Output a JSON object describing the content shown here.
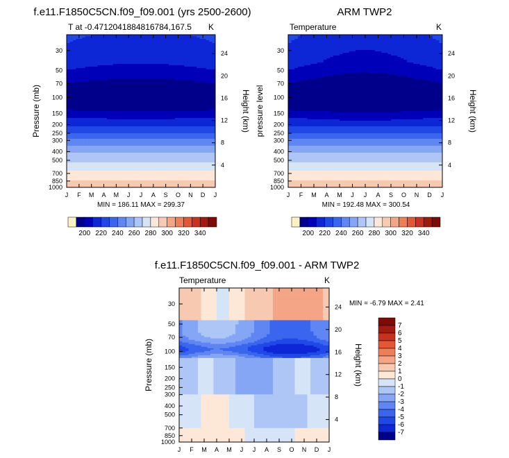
{
  "page": {
    "panel1_title": "f.e11.F1850C5CN.f09_f09.001 (yrs 2500-2600)",
    "panel2_title": "ARM TWP2",
    "panel3_title": "f.e11.F1850C5CN.f09_f09.001 - ARM TWP2"
  },
  "chart_data": [
    {
      "type": "contour",
      "title": "f.e11.F1850C5CN.f09_f09.001 (yrs 2500-2600)",
      "subtitle_left": "T at -0.4712041884816784,167.5",
      "subtitle_right": "K",
      "xlabel": "",
      "ylabel": "Pressure (mb)",
      "ylabel_right": "Height (km)",
      "x_ticks": [
        "J",
        "F",
        "M",
        "A",
        "M",
        "J",
        "J",
        "A",
        "S",
        "O",
        "N",
        "D",
        "J"
      ],
      "y_ticks": [
        "30",
        "50",
        "70",
        "100",
        "150",
        "200",
        "250",
        "300",
        "400",
        "500",
        "700",
        "850",
        "1000"
      ],
      "y_range_mb": [
        1000,
        20
      ],
      "right_ticks": [
        "24",
        "20",
        "16",
        "12",
        "8",
        "4"
      ],
      "stats_text": "MIN = 186.11 MAX = 299.37",
      "min": 186.11,
      "max": 299.37,
      "colorbar_labels": [
        "200",
        "220",
        "240",
        "260",
        "280",
        "300",
        "320",
        "340"
      ],
      "colorbar_levels": [
        190,
        200,
        210,
        220,
        230,
        240,
        250,
        260,
        270,
        280,
        290,
        300,
        310,
        320,
        330,
        340,
        350
      ],
      "colorbar_colors": [
        "#fff1c4",
        "#00008a",
        "#0000b8",
        "#0d27d6",
        "#2048e6",
        "#3a66ef",
        "#5f86f2",
        "#85a6f4",
        "#aec6f6",
        "#d6e4f7",
        "#fde7d7",
        "#f8c9b1",
        "#f3a585",
        "#ee7e58",
        "#e45735",
        "#c8321e",
        "#a11a0f",
        "#7e0a06"
      ],
      "levels_k": [
        {
          "p": 20,
          "v": 222
        },
        {
          "p": 40,
          "v": 215
        },
        {
          "p": 60,
          "v": 205
        },
        {
          "p": 80,
          "v": 195
        },
        {
          "p": 100,
          "v": 190
        },
        {
          "p": 130,
          "v": 196
        },
        {
          "p": 150,
          "v": 205
        },
        {
          "p": 200,
          "v": 218
        },
        {
          "p": 250,
          "v": 230
        },
        {
          "p": 300,
          "v": 242
        },
        {
          "p": 400,
          "v": 258
        },
        {
          "p": 500,
          "v": 268
        },
        {
          "p": 600,
          "v": 276
        },
        {
          "p": 700,
          "v": 283
        },
        {
          "p": 850,
          "v": 291
        },
        {
          "p": 1000,
          "v": 298
        }
      ]
    },
    {
      "type": "contour",
      "title": "ARM TWP2",
      "subtitle_left": "Temperature",
      "subtitle_right": "K",
      "xlabel": "",
      "ylabel": "pressure level",
      "ylabel_right": "Height (km)",
      "x_ticks": [
        "J",
        "F",
        "M",
        "A",
        "M",
        "J",
        "J",
        "A",
        "S",
        "O",
        "N",
        "D",
        "J"
      ],
      "y_ticks": [
        "30",
        "50",
        "70",
        "100",
        "150",
        "200",
        "250",
        "300",
        "400",
        "500",
        "700",
        "850",
        "1000"
      ],
      "y_range_mb": [
        1000,
        20
      ],
      "right_ticks": [
        "24",
        "20",
        "16",
        "12",
        "8",
        "4"
      ],
      "stats_text": "MIN = 192.48 MAX = 300.54",
      "min": 192.48,
      "max": 300.54,
      "colorbar_labels": [
        "200",
        "220",
        "240",
        "260",
        "280",
        "300",
        "320",
        "340"
      ]
    },
    {
      "type": "contour",
      "title": "f.e11.F1850C5CN.f09_f09.001 - ARM TWP2",
      "subtitle_left": "Temperature",
      "subtitle_right": "K",
      "xlabel": "",
      "ylabel": "Pressure (mb)",
      "ylabel_right": "Height (km)",
      "x_ticks": [
        "J",
        "F",
        "M",
        "A",
        "M",
        "J",
        "J",
        "A",
        "S",
        "O",
        "N",
        "D",
        "J"
      ],
      "y_ticks": [
        "30",
        "50",
        "70",
        "100",
        "150",
        "200",
        "250",
        "300",
        "400",
        "500",
        "700",
        "850",
        "1000"
      ],
      "y_range_mb": [
        1000,
        20
      ],
      "right_ticks": [
        "24",
        "20",
        "16",
        "12",
        "8",
        "4"
      ],
      "stats_text": "MIN = -6.79 MAX =   2.41",
      "min": -6.79,
      "max": 2.41,
      "colorbar_labels": [
        "7",
        "6",
        "5",
        "4",
        "3",
        "2",
        "1",
        "0",
        "-1",
        "-2",
        "-3",
        "-4",
        "-5",
        "-6",
        "-7"
      ],
      "colorbar_colors": [
        "#7e0a06",
        "#a11a0f",
        "#c8321e",
        "#e45735",
        "#ee7e58",
        "#f3a585",
        "#f8c9b1",
        "#fde7d7",
        "#d6e4f7",
        "#aec6f6",
        "#85a6f4",
        "#5f86f2",
        "#3a66ef",
        "#2048e6",
        "#0d27d6",
        "#00008a"
      ]
    }
  ]
}
